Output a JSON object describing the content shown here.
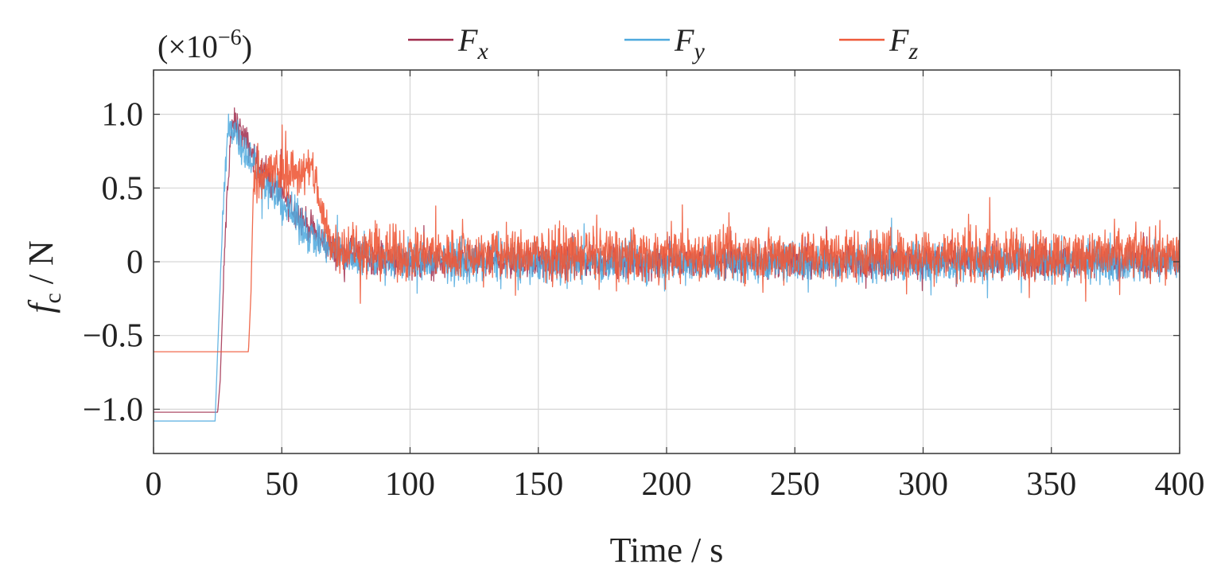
{
  "chart_data": {
    "type": "line",
    "multiplier_label": "(×10",
    "multiplier_exp": "−6",
    "multiplier_close": ")",
    "xlabel": "Time / s",
    "ylabel_main": "f",
    "ylabel_sub": "c",
    "ylabel_unit": " / N",
    "xlim": [
      0,
      400
    ],
    "ylim": [
      -1.3,
      1.3
    ],
    "x_ticks": [
      0,
      50,
      100,
      150,
      200,
      250,
      300,
      350,
      400
    ],
    "x_tick_labels": [
      "0",
      "50",
      "100",
      "150",
      "200",
      "250",
      "300",
      "350",
      "400"
    ],
    "y_ticks": [
      -1.0,
      -0.5,
      0,
      0.5,
      1.0
    ],
    "y_tick_labels": [
      "−1.0",
      "−0.5",
      "0",
      "0.5",
      "1.0"
    ],
    "grid": true,
    "legend_position": "top",
    "series": [
      {
        "name": "F",
        "subscript": "x",
        "color": "#a02c4c",
        "x": [
          0,
          20,
          25,
          26,
          28,
          30,
          32,
          35,
          40,
          45,
          50,
          55,
          60,
          65,
          70,
          80,
          90,
          100,
          150,
          200,
          250,
          300,
          350,
          400
        ],
        "y": [
          -1.02,
          -1.02,
          -1.02,
          -0.8,
          0.2,
          0.85,
          0.95,
          0.85,
          0.68,
          0.55,
          0.45,
          0.35,
          0.25,
          0.15,
          0.08,
          0.04,
          0.02,
          0.0,
          0.0,
          0.0,
          0.0,
          0.0,
          0.0,
          0.0
        ],
        "noise": 0.08
      },
      {
        "name": "F",
        "subscript": "y",
        "color": "#4ea9de",
        "x": [
          0,
          20,
          24,
          25,
          27,
          29,
          31,
          35,
          40,
          45,
          50,
          55,
          60,
          65,
          70,
          80,
          90,
          100,
          150,
          200,
          250,
          300,
          350,
          400
        ],
        "y": [
          -1.08,
          -1.08,
          -1.08,
          -0.6,
          0.3,
          0.9,
          0.92,
          0.78,
          0.63,
          0.5,
          0.4,
          0.3,
          0.2,
          0.13,
          0.07,
          0.03,
          0.01,
          0.0,
          0.0,
          0.0,
          0.0,
          0.0,
          0.0,
          0.0
        ],
        "noise": 0.1
      },
      {
        "name": "F",
        "subscript": "z",
        "color": "#ee5a3a",
        "x": [
          0,
          20,
          37,
          38,
          39,
          40,
          50,
          60,
          63,
          65,
          68,
          70,
          80,
          90,
          100,
          150,
          200,
          250,
          300,
          350,
          400
        ],
        "y": [
          -0.61,
          -0.61,
          -0.61,
          -0.2,
          0.55,
          0.61,
          0.61,
          0.61,
          0.61,
          0.35,
          0.2,
          0.12,
          0.08,
          0.06,
          0.05,
          0.05,
          0.05,
          0.05,
          0.05,
          0.05,
          0.05
        ],
        "noise": 0.13
      }
    ]
  }
}
